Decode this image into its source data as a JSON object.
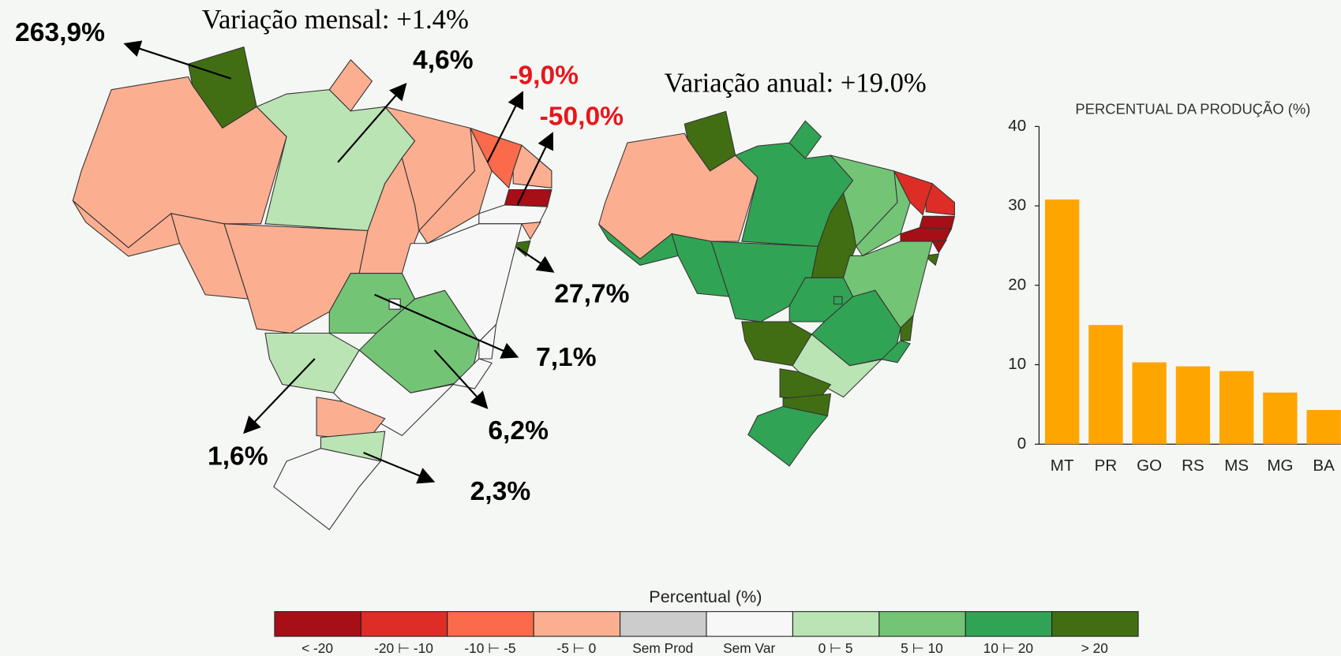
{
  "maps": {
    "monthly_title": "Variação mensal: +1.4%",
    "annual_title": "Variação anual: +19.0%",
    "annotations": [
      {
        "text": "263,9%"
      },
      {
        "text": "4,6%"
      },
      {
        "text": "-9,0%",
        "color": "#e8161b"
      },
      {
        "text": "-50,0%",
        "color": "#e8161b"
      },
      {
        "text": "27,7%"
      },
      {
        "text": "7,1%"
      },
      {
        "text": "6,2%"
      },
      {
        "text": "1,6%"
      },
      {
        "text": "2,3%"
      }
    ]
  },
  "legend": {
    "title": "Percentual (%)",
    "items": [
      {
        "label": "< -20",
        "color": "#a50f15"
      },
      {
        "label": "-20 ⊢ -10",
        "color": "#de2d26"
      },
      {
        "label": "-10 ⊢ -5",
        "color": "#fb6a4a"
      },
      {
        "label": "-5 ⊢ 0",
        "color": "#fcae91"
      },
      {
        "label": "Sem Prod",
        "color": "#cccccc"
      },
      {
        "label": "Sem Var",
        "color": "#f7f7f7"
      },
      {
        "label": "0 ⊢ 5",
        "color": "#bae4b3"
      },
      {
        "label": "5 ⊢ 10",
        "color": "#74c476"
      },
      {
        "label": "10 ⊢ 20",
        "color": "#31a354"
      },
      {
        "label": "> 20",
        "color": "#416e13"
      }
    ]
  },
  "chart_data": {
    "type": "bar",
    "title": "PERCENTUAL DA PRODUÇÃO (%)",
    "categories": [
      "MT",
      "PR",
      "GO",
      "RS",
      "MS",
      "MG",
      "BA"
    ],
    "values": [
      30.8,
      15.0,
      10.3,
      9.8,
      9.2,
      6.5,
      4.3
    ],
    "color": "#ffa500",
    "ylim": [
      0,
      40
    ],
    "yticks": [
      0,
      10,
      20,
      30,
      40
    ]
  }
}
